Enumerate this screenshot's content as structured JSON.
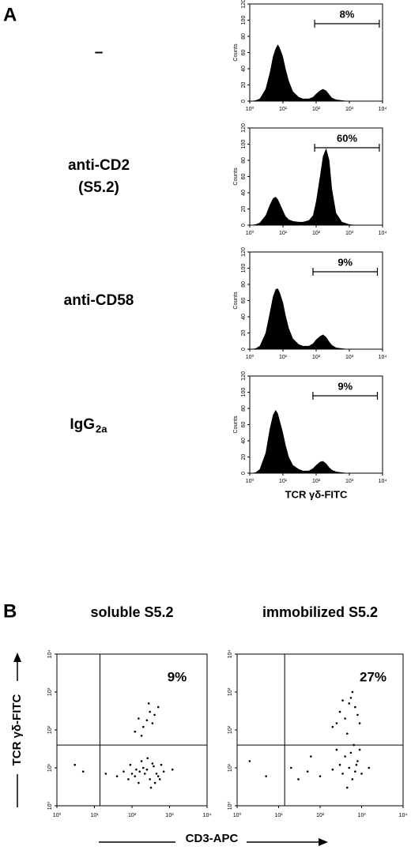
{
  "figure": {
    "panel_a_letter": "A",
    "panel_b_letter": "B",
    "b_xlabel": "CD3-APC",
    "b_ylabel": "TCR γδ-FITC"
  },
  "chart_data": [
    {
      "type": "histogram",
      "label_lines": [
        "–"
      ],
      "ylabel": "Counts",
      "annotation": "8%",
      "gate": [
        90,
        8000
      ],
      "log_x": true,
      "color": "#000000",
      "x": [
        1,
        1.5,
        2,
        3,
        4,
        5,
        6,
        7,
        8,
        10,
        12,
        15,
        20,
        30,
        40,
        60,
        80,
        100,
        130,
        160,
        200,
        250,
        300,
        400,
        600,
        1000,
        2000,
        5000
      ],
      "values": [
        0,
        1,
        3,
        15,
        35,
        55,
        65,
        70,
        66,
        55,
        40,
        25,
        12,
        5,
        3,
        3,
        5,
        9,
        13,
        15,
        13,
        8,
        4,
        2,
        1,
        0,
        0,
        0
      ],
      "xlim": [
        1,
        10000
      ],
      "xticks": [
        {
          "value": 1,
          "label": "10⁰"
        },
        {
          "value": 10,
          "label": "10¹"
        },
        {
          "value": 100,
          "label": "10²"
        },
        {
          "value": 1000,
          "label": "10³"
        },
        {
          "value": 10000,
          "label": "10⁴"
        }
      ],
      "ylim": [
        0,
        120
      ],
      "yticks": [
        0,
        20,
        40,
        60,
        80,
        100,
        120
      ]
    },
    {
      "type": "histogram",
      "label_lines": [
        "anti-CD2",
        "(S5.2)"
      ],
      "ylabel": "Counts",
      "annotation": "60%",
      "gate": [
        90,
        8000
      ],
      "log_x": true,
      "color": "#000000",
      "x": [
        1,
        1.5,
        2,
        3,
        4,
        5,
        6,
        7,
        8,
        10,
        12,
        15,
        20,
        30,
        40,
        60,
        80,
        100,
        130,
        160,
        200,
        250,
        300,
        400,
        600,
        1000,
        2000,
        5000
      ],
      "values": [
        0,
        1,
        3,
        12,
        25,
        33,
        35,
        32,
        27,
        18,
        11,
        7,
        5,
        4,
        4,
        6,
        12,
        30,
        60,
        85,
        95,
        80,
        45,
        15,
        4,
        1,
        0,
        0
      ],
      "xlim": [
        1,
        10000
      ],
      "xticks": [
        {
          "value": 1,
          "label": "10⁰"
        },
        {
          "value": 10,
          "label": "10¹"
        },
        {
          "value": 100,
          "label": "10²"
        },
        {
          "value": 1000,
          "label": "10³"
        },
        {
          "value": 10000,
          "label": "10⁴"
        }
      ],
      "ylim": [
        0,
        120
      ],
      "yticks": [
        0,
        20,
        40,
        60,
        80,
        100,
        120
      ]
    },
    {
      "type": "histogram",
      "label_lines": [
        "anti-CD58"
      ],
      "ylabel": "Counts",
      "annotation": "9%",
      "gate": [
        80,
        7000
      ],
      "log_x": true,
      "color": "#000000",
      "x": [
        1,
        1.5,
        2,
        3,
        4,
        5,
        6,
        7,
        8,
        10,
        12,
        15,
        20,
        30,
        40,
        60,
        80,
        100,
        130,
        160,
        200,
        250,
        300,
        400,
        600,
        1000,
        2000,
        5000
      ],
      "values": [
        0,
        1,
        4,
        20,
        45,
        65,
        74,
        75,
        70,
        58,
        42,
        26,
        13,
        6,
        4,
        4,
        7,
        12,
        16,
        18,
        15,
        9,
        5,
        2,
        1,
        0,
        0,
        0
      ],
      "xlim": [
        1,
        10000
      ],
      "xticks": [
        {
          "value": 1,
          "label": "10⁰"
        },
        {
          "value": 10,
          "label": "10¹"
        },
        {
          "value": 100,
          "label": "10²"
        },
        {
          "value": 1000,
          "label": "10³"
        },
        {
          "value": 10000,
          "label": "10⁴"
        }
      ],
      "ylim": [
        0,
        120
      ],
      "yticks": [
        0,
        20,
        40,
        60,
        80,
        100,
        120
      ]
    },
    {
      "type": "histogram",
      "label_lines": [
        "IgG"
      ],
      "label_subscript": "2a",
      "ylabel": "Counts",
      "xlabel": "TCR γδ-FITC",
      "annotation": "9%",
      "gate": [
        80,
        7000
      ],
      "log_x": true,
      "color": "#000000",
      "x": [
        1,
        1.5,
        2,
        3,
        4,
        5,
        6,
        7,
        8,
        10,
        12,
        15,
        20,
        30,
        40,
        60,
        80,
        100,
        130,
        160,
        200,
        250,
        300,
        400,
        600,
        1000,
        2000,
        5000
      ],
      "values": [
        0,
        1,
        5,
        25,
        55,
        72,
        78,
        74,
        65,
        50,
        35,
        20,
        10,
        5,
        3,
        3,
        6,
        10,
        14,
        15,
        12,
        7,
        4,
        2,
        1,
        0,
        0,
        0
      ],
      "xlim": [
        1,
        10000
      ],
      "xticks": [
        {
          "value": 1,
          "label": "10⁰"
        },
        {
          "value": 10,
          "label": "10¹"
        },
        {
          "value": 100,
          "label": "10²"
        },
        {
          "value": 1000,
          "label": "10³"
        },
        {
          "value": 10000,
          "label": "10⁴"
        }
      ],
      "ylim": [
        0,
        120
      ],
      "yticks": [
        0,
        20,
        40,
        60,
        80,
        100,
        120
      ]
    },
    {
      "type": "scatter",
      "title": "soluble S5.2",
      "annotation": "9%",
      "quadrant_x": 14,
      "quadrant_y": 40,
      "log_x": true,
      "log_y": true,
      "color": "#000000",
      "x": [
        60,
        120,
        200,
        300,
        450,
        90,
        150,
        250,
        380,
        500,
        700,
        40,
        180,
        320,
        220,
        600,
        130,
        80,
        1200,
        20,
        5,
        3,
        260,
        410,
        160,
        100,
        350,
        550,
        150,
        250,
        300,
        200,
        400,
        120,
        350,
        500,
        180,
        280
      ],
      "y": [
        8,
        6,
        10,
        5,
        7,
        12,
        4,
        9,
        11,
        6,
        8,
        6,
        15,
        3,
        7,
        12,
        9,
        5,
        9,
        7,
        8,
        12,
        18,
        4,
        8,
        7,
        13,
        5,
        200,
        180,
        300,
        120,
        250,
        90,
        150,
        400,
        70,
        500
      ],
      "xlim": [
        1,
        10000
      ],
      "xticks": [
        {
          "value": 1,
          "label": "10⁰"
        },
        {
          "value": 10,
          "label": "10¹"
        },
        {
          "value": 100,
          "label": "10²"
        },
        {
          "value": 1000,
          "label": "10³"
        },
        {
          "value": 10000,
          "label": "10⁴"
        }
      ],
      "ylim": [
        1,
        10000
      ],
      "yticks": [
        {
          "value": 1,
          "label": "10⁰"
        },
        {
          "value": 10,
          "label": "10¹"
        },
        {
          "value": 100,
          "label": "10²"
        },
        {
          "value": 1000,
          "label": "10³"
        },
        {
          "value": 10000,
          "label": "10⁴"
        }
      ]
    },
    {
      "type": "scatter",
      "title": "immobilized S5.2",
      "annotation": "27%",
      "quadrant_x": 14,
      "quadrant_y": 40,
      "log_x": true,
      "log_y": true,
      "color": "#000000",
      "x": [
        500,
        700,
        400,
        600,
        800,
        300,
        900,
        200,
        650,
        1000,
        450,
        550,
        100,
        50,
        20,
        5,
        2,
        750,
        350,
        1500,
        60,
        250,
        30,
        300,
        500,
        400,
        600,
        250,
        700,
        350,
        800,
        200,
        450,
        550,
        900
      ],
      "y": [
        10,
        8,
        20,
        5,
        15,
        12,
        30,
        9,
        40,
        7,
        3,
        25,
        6,
        8,
        10,
        6,
        15,
        12,
        7,
        10,
        20,
        30,
        5,
        300,
        500,
        200,
        1000,
        150,
        400,
        600,
        250,
        120,
        80,
        700,
        150
      ],
      "xlim": [
        1,
        10000
      ],
      "xticks": [
        {
          "value": 1,
          "label": "10⁰"
        },
        {
          "value": 10,
          "label": "10¹"
        },
        {
          "value": 100,
          "label": "10²"
        },
        {
          "value": 1000,
          "label": "10³"
        },
        {
          "value": 10000,
          "label": "10⁴"
        }
      ],
      "ylim": [
        1,
        10000
      ],
      "yticks": [
        {
          "value": 1,
          "label": "10⁰"
        },
        {
          "value": 10,
          "label": "10¹"
        },
        {
          "value": 100,
          "label": "10²"
        },
        {
          "value": 1000,
          "label": "10³"
        },
        {
          "value": 10000,
          "label": "10⁴"
        }
      ]
    }
  ]
}
